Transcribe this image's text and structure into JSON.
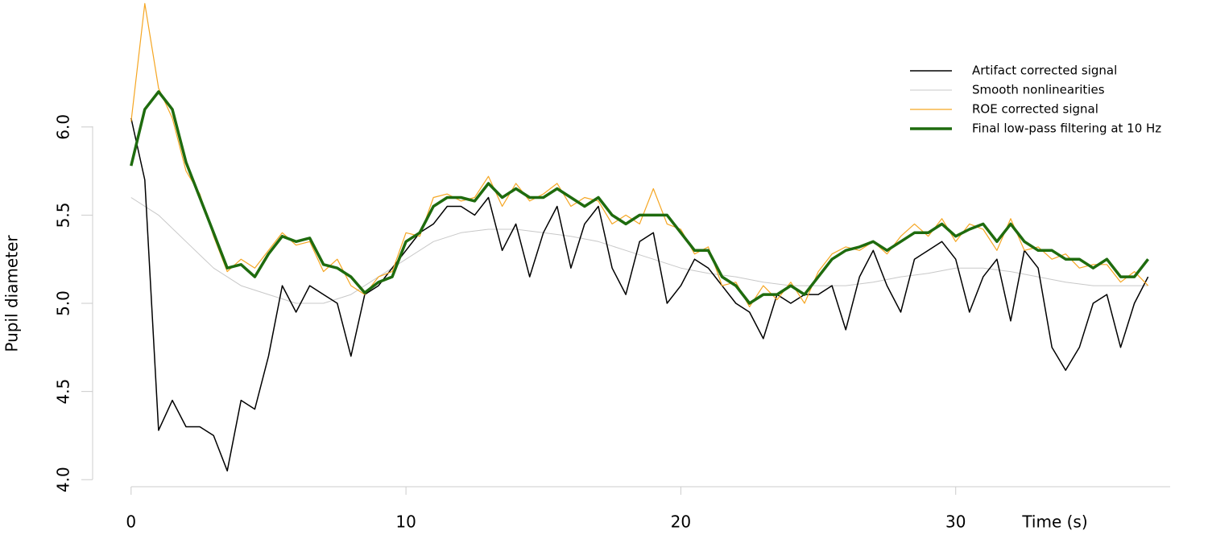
{
  "chart_data": {
    "type": "line",
    "x_label": "Time (s)",
    "y_label": "Pupil diameter",
    "xlim": [
      -1.4,
      38.3
    ],
    "ylim": [
      3.96,
      6.72
    ],
    "xticks": [
      0,
      10,
      20,
      30
    ],
    "yticks": [
      {
        "value": 4.0,
        "label": "4.0"
      },
      {
        "value": 4.5,
        "label": "4.5"
      },
      {
        "value": 5.0,
        "label": "5.0"
      },
      {
        "value": 5.5,
        "label": "5.5"
      },
      {
        "value": 6.0,
        "label": "6.0"
      }
    ],
    "legend": "top-right",
    "x": [
      0,
      0.5,
      1,
      1.5,
      2,
      2.5,
      3,
      3.5,
      4,
      4.5,
      5,
      5.5,
      6,
      6.5,
      7,
      7.5,
      8,
      8.5,
      9,
      9.5,
      10,
      10.5,
      11,
      11.5,
      12,
      12.5,
      13,
      13.5,
      14,
      14.5,
      15,
      15.5,
      16,
      16.5,
      17,
      17.5,
      18,
      18.5,
      19,
      19.5,
      20,
      20.5,
      21,
      21.5,
      22,
      22.5,
      23,
      23.5,
      24,
      24.5,
      25,
      25.5,
      26,
      26.5,
      27,
      27.5,
      28,
      28.5,
      29,
      29.5,
      30,
      30.5,
      31,
      31.5,
      32,
      32.5,
      33,
      33.5,
      34,
      34.5,
      35,
      35.5,
      36,
      36.5,
      37
    ],
    "series": [
      {
        "name": "Smooth nonlinearities",
        "color": "#c8c8c8",
        "width": 1,
        "x": [
          0,
          1,
          2,
          3,
          4,
          5,
          6,
          7,
          8,
          9,
          10,
          11,
          12,
          13,
          14,
          15,
          16,
          17,
          18,
          19,
          20,
          21,
          22,
          23,
          24,
          25,
          26,
          27,
          28,
          29,
          30,
          31,
          32,
          33,
          34,
          35,
          36,
          37
        ],
        "values": [
          5.6,
          5.5,
          5.35,
          5.2,
          5.1,
          5.05,
          5.0,
          5.0,
          5.05,
          5.15,
          5.25,
          5.35,
          5.4,
          5.42,
          5.42,
          5.4,
          5.38,
          5.35,
          5.3,
          5.25,
          5.2,
          5.17,
          5.15,
          5.12,
          5.1,
          5.1,
          5.1,
          5.12,
          5.15,
          5.17,
          5.2,
          5.2,
          5.18,
          5.15,
          5.12,
          5.1,
          5.1,
          5.1
        ]
      },
      {
        "name": "Artifact corrected signal",
        "color": "#000000",
        "width": 1.5,
        "values": [
          6.05,
          5.7,
          4.28,
          4.45,
          4.3,
          4.3,
          4.25,
          4.05,
          4.45,
          4.4,
          4.7,
          5.1,
          4.95,
          5.1,
          5.05,
          5.0,
          4.7,
          5.05,
          5.1,
          5.2,
          5.3,
          5.4,
          5.45,
          5.55,
          5.55,
          5.5,
          5.6,
          5.3,
          5.45,
          5.15,
          5.4,
          5.55,
          5.2,
          5.45,
          5.55,
          5.2,
          5.05,
          5.35,
          5.4,
          5.0,
          5.1,
          5.25,
          5.2,
          5.1,
          5.0,
          4.95,
          4.8,
          5.05,
          5.0,
          5.05,
          5.05,
          5.1,
          4.85,
          5.15,
          5.3,
          5.1,
          4.95,
          5.25,
          5.3,
          5.35,
          5.25,
          4.95,
          5.15,
          5.25,
          4.9,
          5.3,
          5.2,
          4.75,
          4.62,
          4.75,
          5.0,
          5.05,
          4.75,
          5.0,
          5.15
        ]
      },
      {
        "name": "ROE corrected signal",
        "color": "#f5a623",
        "width": 1.2,
        "values": [
          6.03,
          6.7,
          6.22,
          6.05,
          5.75,
          5.62,
          5.38,
          5.18,
          5.25,
          5.2,
          5.3,
          5.4,
          5.33,
          5.35,
          5.18,
          5.25,
          5.1,
          5.05,
          5.15,
          5.18,
          5.4,
          5.38,
          5.6,
          5.62,
          5.58,
          5.6,
          5.72,
          5.55,
          5.68,
          5.58,
          5.62,
          5.68,
          5.55,
          5.6,
          5.58,
          5.45,
          5.5,
          5.45,
          5.65,
          5.45,
          5.42,
          5.28,
          5.32,
          5.1,
          5.12,
          4.98,
          5.1,
          5.02,
          5.12,
          5.0,
          5.18,
          5.28,
          5.32,
          5.3,
          5.35,
          5.28,
          5.38,
          5.45,
          5.38,
          5.48,
          5.35,
          5.45,
          5.42,
          5.3,
          5.48,
          5.3,
          5.32,
          5.25,
          5.28,
          5.2,
          5.22,
          5.22,
          5.12,
          5.18,
          5.1
        ]
      },
      {
        "name": "Final low-pass filtering at 10 Hz",
        "color": "#1e6b0e",
        "width": 3.5,
        "values": [
          5.78,
          6.1,
          6.2,
          6.1,
          5.8,
          5.6,
          5.4,
          5.2,
          5.22,
          5.15,
          5.28,
          5.38,
          5.35,
          5.37,
          5.22,
          5.2,
          5.15,
          5.06,
          5.12,
          5.15,
          5.35,
          5.4,
          5.55,
          5.6,
          5.6,
          5.58,
          5.68,
          5.6,
          5.65,
          5.6,
          5.6,
          5.65,
          5.6,
          5.55,
          5.6,
          5.5,
          5.45,
          5.5,
          5.5,
          5.5,
          5.4,
          5.3,
          5.3,
          5.15,
          5.1,
          5.0,
          5.05,
          5.05,
          5.1,
          5.05,
          5.15,
          5.25,
          5.3,
          5.32,
          5.35,
          5.3,
          5.35,
          5.4,
          5.4,
          5.45,
          5.38,
          5.42,
          5.45,
          5.35,
          5.45,
          5.35,
          5.3,
          5.3,
          5.25,
          5.25,
          5.2,
          5.25,
          5.15,
          5.15,
          5.25
        ]
      }
    ]
  }
}
